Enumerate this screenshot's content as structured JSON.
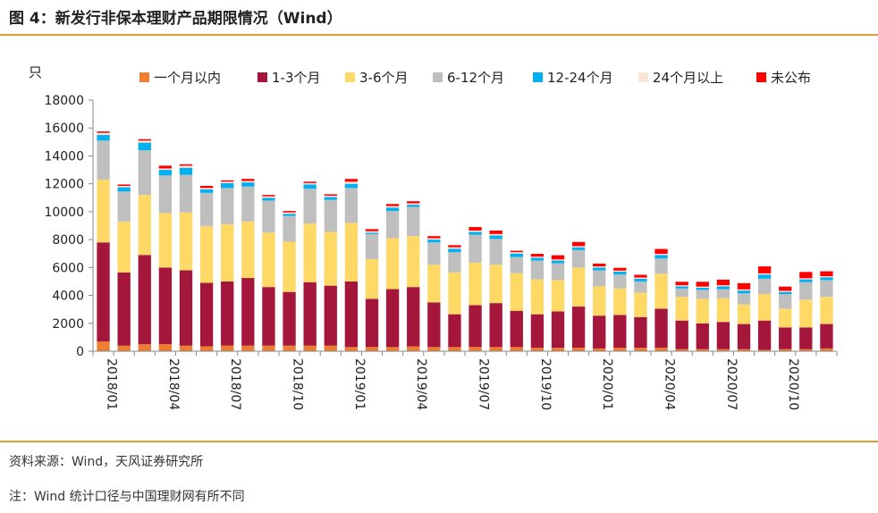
{
  "figure": {
    "title": "图 4：新发行非保本理财产品期限情况（Wind）",
    "source": "资料来源：Wind，天风证券研究所",
    "note": "注：Wind 统计口径与中国理财网有所不同"
  },
  "chart_data": {
    "type": "bar",
    "stacked": true,
    "ylabel": "只",
    "ylim": [
      0,
      18000
    ],
    "yticks": [
      0,
      2000,
      4000,
      6000,
      8000,
      10000,
      12000,
      14000,
      16000,
      18000
    ],
    "xlabels": [
      "2018/01",
      "2018/04",
      "2018/07",
      "2018/10",
      "2019/01",
      "2019/04",
      "2019/07",
      "2019/10",
      "2020/01",
      "2020/04",
      "2020/07",
      "2020/10"
    ],
    "grid": false,
    "legend": "top",
    "categories": [
      "2018/01",
      "2018/02",
      "2018/03",
      "2018/04",
      "2018/05",
      "2018/06",
      "2018/07",
      "2018/08",
      "2018/09",
      "2018/10",
      "2018/11",
      "2018/12",
      "2019/01",
      "2019/02",
      "2019/03",
      "2019/04",
      "2019/05",
      "2019/06",
      "2019/07",
      "2019/08",
      "2019/09",
      "2019/10",
      "2019/11",
      "2019/12",
      "2020/01",
      "2020/02",
      "2020/03",
      "2020/04",
      "2020/05",
      "2020/06",
      "2020/07",
      "2020/08",
      "2020/09",
      "2020/10",
      "2020/11",
      "2020/12"
    ],
    "series": [
      {
        "name": "一个月以内",
        "color": "#ed7d31",
        "values": [
          700,
          400,
          500,
          500,
          400,
          350,
          400,
          400,
          400,
          400,
          400,
          400,
          300,
          300,
          300,
          350,
          300,
          300,
          300,
          300,
          300,
          250,
          250,
          250,
          200,
          250,
          250,
          250,
          150,
          150,
          150,
          150,
          100,
          150,
          150,
          200
        ]
      },
      {
        "name": "1-3个月",
        "color": "#a5163d",
        "values": [
          7100,
          5250,
          6400,
          5500,
          5400,
          4550,
          4600,
          4850,
          4200,
          3850,
          4550,
          4300,
          4700,
          3450,
          4150,
          4250,
          3200,
          2350,
          3000,
          3150,
          2600,
          2400,
          2600,
          2950,
          2350,
          2350,
          2200,
          2800,
          2050,
          1850,
          1950,
          1800,
          2100,
          1550,
          1550,
          1750
        ]
      },
      {
        "name": "3-6个月",
        "color": "#ffd966",
        "values": [
          4500,
          3650,
          4300,
          3900,
          4150,
          4050,
          4100,
          4050,
          3900,
          3600,
          4200,
          3850,
          4200,
          2850,
          3650,
          3650,
          2700,
          3000,
          3050,
          2750,
          2700,
          2500,
          2250,
          2800,
          2100,
          1900,
          1750,
          2500,
          1700,
          1750,
          1700,
          1400,
          1900,
          1350,
          2000,
          1950
        ]
      },
      {
        "name": "6-12个月",
        "color": "#bfbfbf",
        "values": [
          2800,
          2150,
          3200,
          2700,
          2700,
          2400,
          2600,
          2500,
          2300,
          1850,
          2500,
          2300,
          2500,
          1800,
          1950,
          2100,
          1600,
          1450,
          2000,
          1850,
          1150,
          1350,
          1200,
          1250,
          1150,
          1000,
          800,
          1100,
          600,
          650,
          650,
          800,
          1100,
          1050,
          1250,
          1200
        ]
      },
      {
        "name": "12-24个月",
        "color": "#00b0f0",
        "values": [
          400,
          300,
          550,
          400,
          500,
          250,
          350,
          300,
          200,
          150,
          300,
          200,
          300,
          100,
          250,
          150,
          200,
          250,
          200,
          250,
          250,
          200,
          200,
          200,
          200,
          200,
          200,
          250,
          150,
          150,
          200,
          200,
          300,
          150,
          200,
          200
        ]
      },
      {
        "name": "24个月以上",
        "color": "#fbe5d6",
        "values": [
          150,
          100,
          150,
          100,
          150,
          100,
          100,
          100,
          100,
          100,
          100,
          100,
          150,
          100,
          100,
          100,
          100,
          100,
          100,
          100,
          100,
          80,
          80,
          80,
          80,
          80,
          80,
          80,
          80,
          80,
          80,
          80,
          80,
          80,
          80,
          80
        ]
      },
      {
        "name": "未公布",
        "color": "#ff0000",
        "values": [
          100,
          100,
          100,
          200,
          100,
          150,
          100,
          150,
          100,
          100,
          100,
          100,
          200,
          150,
          150,
          150,
          150,
          150,
          250,
          250,
          100,
          200,
          300,
          300,
          200,
          200,
          200,
          350,
          250,
          350,
          400,
          450,
          500,
          300,
          450,
          350
        ]
      }
    ]
  }
}
